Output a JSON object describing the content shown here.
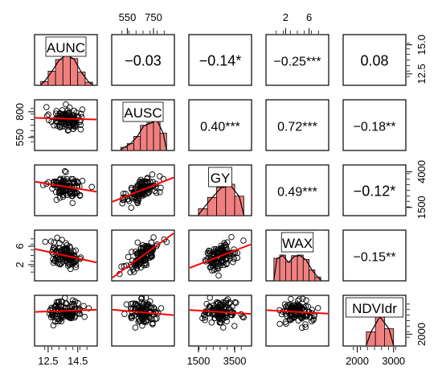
{
  "chart_data": {
    "type": "scatter-matrix",
    "variables": [
      "AUNC",
      "AUSC",
      "GY",
      "WAX",
      "NDVIdr"
    ],
    "ranges": [
      [
        11.8,
        15.6
      ],
      [
        455,
        885
      ],
      [
        1150,
        4250
      ],
      [
        -0.8,
        8.8
      ],
      [
        1700,
        3250
      ]
    ],
    "axis_ticks": [
      {
        "values": [
          12.5,
          14.5
        ],
        "labels": [
          "12.5",
          "14.5"
        ],
        "side": "bottom"
      },
      {
        "values": [
          550,
          750
        ],
        "labels": [
          "550",
          "750"
        ],
        "side": "top"
      },
      {
        "values": [
          1500,
          3500
        ],
        "labels": [
          "1500",
          "3500"
        ],
        "side": "bottom"
      },
      {
        "values": [
          2,
          6
        ],
        "labels": [
          "2",
          "6"
        ],
        "side": "top"
      },
      {
        "values": [
          2000,
          3000
        ],
        "labels": [
          "2000",
          "3000"
        ],
        "side": "bottom"
      }
    ],
    "row_ticks": [
      {
        "values": [
          12.5,
          15.0
        ],
        "labels": [
          "12.5",
          "15.0"
        ],
        "side": "right"
      },
      {
        "values": [
          550,
          800
        ],
        "labels": [
          "550",
          "800"
        ],
        "side": "left"
      },
      {
        "values": [
          1500,
          4000
        ],
        "labels": [
          "1500",
          "4000"
        ],
        "side": "right"
      },
      {
        "values": [
          2,
          6
        ],
        "labels": [
          "2",
          "6"
        ],
        "side": "left"
      },
      {
        "values": [
          2000
        ],
        "labels": [
          "2000"
        ],
        "side": "right"
      }
    ],
    "correlations": [
      {
        "row": 0,
        "col": 1,
        "label": "−0.03"
      },
      {
        "row": 0,
        "col": 2,
        "label": "−0.14*"
      },
      {
        "row": 0,
        "col": 3,
        "label": "−0.25***"
      },
      {
        "row": 0,
        "col": 4,
        "label": "0.08"
      },
      {
        "row": 1,
        "col": 2,
        "label": "0.40***"
      },
      {
        "row": 1,
        "col": 3,
        "label": "0.72***"
      },
      {
        "row": 1,
        "col": 4,
        "label": "−0.18**"
      },
      {
        "row": 2,
        "col": 3,
        "label": "0.49***"
      },
      {
        "row": 2,
        "col": 4,
        "label": "−0.12*"
      },
      {
        "row": 3,
        "col": 4,
        "label": "−0.15**"
      }
    ],
    "histograms": [
      {
        "var": "AUNC",
        "edges": [
          12.0,
          12.5,
          13.0,
          13.5,
          14.0,
          14.5,
          15.0,
          15.5
        ],
        "density": [
          0.12,
          0.45,
          0.82,
          1.0,
          0.85,
          0.42,
          0.1
        ]
      },
      {
        "var": "AUSC",
        "edges": [
          500,
          550,
          600,
          650,
          700,
          750,
          800,
          850
        ],
        "density": [
          0.1,
          0.22,
          0.45,
          0.8,
          0.88,
          1.0,
          0.55
        ]
      },
      {
        "var": "GY",
        "edges": [
          1500,
          2000,
          2500,
          3000,
          3500,
          4000
        ],
        "density": [
          0.22,
          0.58,
          0.9,
          1.0,
          0.62
        ]
      },
      {
        "var": "WAX",
        "edges": [
          0,
          1,
          2,
          3,
          4,
          5,
          6,
          7,
          8
        ],
        "density": [
          0.72,
          0.82,
          0.6,
          0.8,
          0.82,
          0.68,
          0.35,
          0.12
        ]
      },
      {
        "var": "NDVIdr",
        "edges": [
          2250,
          2500,
          2750,
          3000
        ],
        "density": [
          0.45,
          0.95,
          0.55
        ]
      }
    ],
    "regressions": [
      {
        "row": 1,
        "col": 0,
        "y": [
          740,
          725
        ]
      },
      {
        "row": 2,
        "col": 0,
        "y": [
          3300,
          2600
        ]
      },
      {
        "row": 2,
        "col": 1,
        "y": [
          1900,
          3600
        ]
      },
      {
        "row": 3,
        "col": 0,
        "y": [
          5.4,
          2.5
        ]
      },
      {
        "row": 3,
        "col": 1,
        "y": [
          -0.8,
          8.8
        ]
      },
      {
        "row": 3,
        "col": 2,
        "y": [
          1.3,
          6.4
        ]
      },
      {
        "row": 4,
        "col": 0,
        "y": [
          2780,
          2860
        ]
      },
      {
        "row": 4,
        "col": 1,
        "y": [
          2860,
          2670
        ]
      },
      {
        "row": 4,
        "col": 2,
        "y": [
          2850,
          2710
        ]
      },
      {
        "row": 4,
        "col": 3,
        "y": [
          2840,
          2720
        ]
      }
    ],
    "point_color": "#000000",
    "line_color": "#ff0000",
    "bar_fill": "#f08080",
    "density_line_color": "#000000",
    "grid": false
  }
}
